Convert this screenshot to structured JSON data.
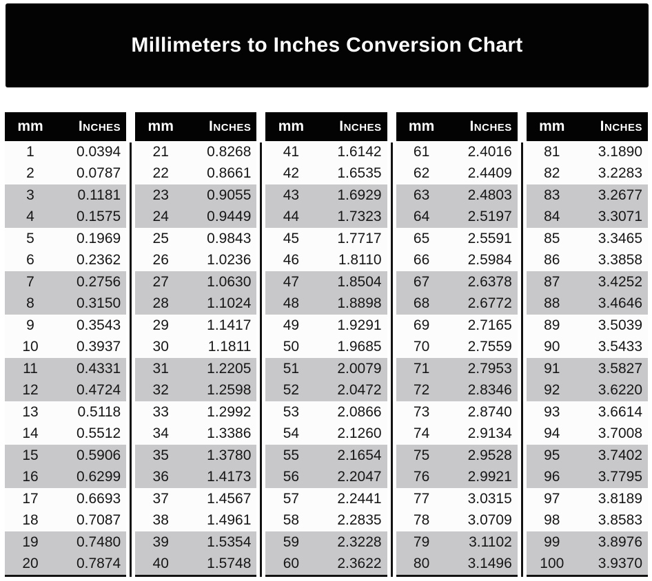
{
  "title": "Millimeters to Inches Conversion Chart",
  "colors": {
    "banner_bg": "#030303",
    "banner_text": "#ffffff",
    "header_bg": "#030303",
    "header_text": "#ffffff",
    "row_light": "#fcfcfc",
    "row_shaded": "#c8c8cb",
    "divider": "#121212",
    "value_text": "#161616",
    "page_bg": "#ffffff"
  },
  "chart_data": {
    "type": "table",
    "title": "Millimeters to Inches Conversion Chart",
    "column_headers": [
      "mm",
      "Inches"
    ],
    "shading_pattern": "rows shaded in alternating pairs (rows 3-4, 7-8, 11-12, 15-16, 19-20 of each group)",
    "groups": [
      {
        "mm_range": "1-20",
        "rows": [
          [
            "1",
            "0.0394"
          ],
          [
            "2",
            "0.0787"
          ],
          [
            "3",
            "0.1181"
          ],
          [
            "4",
            "0.1575"
          ],
          [
            "5",
            "0.1969"
          ],
          [
            "6",
            "0.2362"
          ],
          [
            "7",
            "0.2756"
          ],
          [
            "8",
            "0.3150"
          ],
          [
            "9",
            "0.3543"
          ],
          [
            "10",
            "0.3937"
          ],
          [
            "11",
            "0.4331"
          ],
          [
            "12",
            "0.4724"
          ],
          [
            "13",
            "0.5118"
          ],
          [
            "14",
            "0.5512"
          ],
          [
            "15",
            "0.5906"
          ],
          [
            "16",
            "0.6299"
          ],
          [
            "17",
            "0.6693"
          ],
          [
            "18",
            "0.7087"
          ],
          [
            "19",
            "0.7480"
          ],
          [
            "20",
            "0.7874"
          ]
        ]
      },
      {
        "mm_range": "21-40",
        "rows": [
          [
            "21",
            "0.8268"
          ],
          [
            "22",
            "0.8661"
          ],
          [
            "23",
            "0.9055"
          ],
          [
            "24",
            "0.9449"
          ],
          [
            "25",
            "0.9843"
          ],
          [
            "26",
            "1.0236"
          ],
          [
            "27",
            "1.0630"
          ],
          [
            "28",
            "1.1024"
          ],
          [
            "29",
            "1.1417"
          ],
          [
            "30",
            "1.1811"
          ],
          [
            "31",
            "1.2205"
          ],
          [
            "32",
            "1.2598"
          ],
          [
            "33",
            "1.2992"
          ],
          [
            "34",
            "1.3386"
          ],
          [
            "35",
            "1.3780"
          ],
          [
            "36",
            "1.4173"
          ],
          [
            "37",
            "1.4567"
          ],
          [
            "38",
            "1.4961"
          ],
          [
            "39",
            "1.5354"
          ],
          [
            "40",
            "1.5748"
          ]
        ]
      },
      {
        "mm_range": "41-60",
        "rows": [
          [
            "41",
            "1.6142"
          ],
          [
            "42",
            "1.6535"
          ],
          [
            "43",
            "1.6929"
          ],
          [
            "44",
            "1.7323"
          ],
          [
            "45",
            "1.7717"
          ],
          [
            "46",
            "1.8110"
          ],
          [
            "47",
            "1.8504"
          ],
          [
            "48",
            "1.8898"
          ],
          [
            "49",
            "1.9291"
          ],
          [
            "50",
            "1.9685"
          ],
          [
            "51",
            "2.0079"
          ],
          [
            "52",
            "2.0472"
          ],
          [
            "53",
            "2.0866"
          ],
          [
            "54",
            "2.1260"
          ],
          [
            "55",
            "2.1654"
          ],
          [
            "56",
            "2.2047"
          ],
          [
            "57",
            "2.2441"
          ],
          [
            "58",
            "2.2835"
          ],
          [
            "59",
            "2.3228"
          ],
          [
            "60",
            "2.3622"
          ]
        ]
      },
      {
        "mm_range": "61-80",
        "rows": [
          [
            "61",
            "2.4016"
          ],
          [
            "62",
            "2.4409"
          ],
          [
            "63",
            "2.4803"
          ],
          [
            "64",
            "2.5197"
          ],
          [
            "65",
            "2.5591"
          ],
          [
            "66",
            "2.5984"
          ],
          [
            "67",
            "2.6378"
          ],
          [
            "68",
            "2.6772"
          ],
          [
            "69",
            "2.7165"
          ],
          [
            "70",
            "2.7559"
          ],
          [
            "71",
            "2.7953"
          ],
          [
            "72",
            "2.8346"
          ],
          [
            "73",
            "2.8740"
          ],
          [
            "74",
            "2.9134"
          ],
          [
            "75",
            "2.9528"
          ],
          [
            "76",
            "2.9921"
          ],
          [
            "77",
            "3.0315"
          ],
          [
            "78",
            "3.0709"
          ],
          [
            "79",
            "3.1102"
          ],
          [
            "80",
            "3.1496"
          ]
        ]
      },
      {
        "mm_range": "81-100",
        "rows": [
          [
            "81",
            "3.1890"
          ],
          [
            "82",
            "3.2283"
          ],
          [
            "83",
            "3.2677"
          ],
          [
            "84",
            "3.3071"
          ],
          [
            "85",
            "3.3465"
          ],
          [
            "86",
            "3.3858"
          ],
          [
            "87",
            "3.4252"
          ],
          [
            "88",
            "3.4646"
          ],
          [
            "89",
            "3.5039"
          ],
          [
            "90",
            "3.5433"
          ],
          [
            "91",
            "3.5827"
          ],
          [
            "92",
            "3.6220"
          ],
          [
            "93",
            "3.6614"
          ],
          [
            "94",
            "3.7008"
          ],
          [
            "95",
            "3.7402"
          ],
          [
            "96",
            "3.7795"
          ],
          [
            "97",
            "3.8189"
          ],
          [
            "98",
            "3.8583"
          ],
          [
            "99",
            "3.8976"
          ],
          [
            "100",
            "3.9370"
          ]
        ]
      }
    ]
  }
}
